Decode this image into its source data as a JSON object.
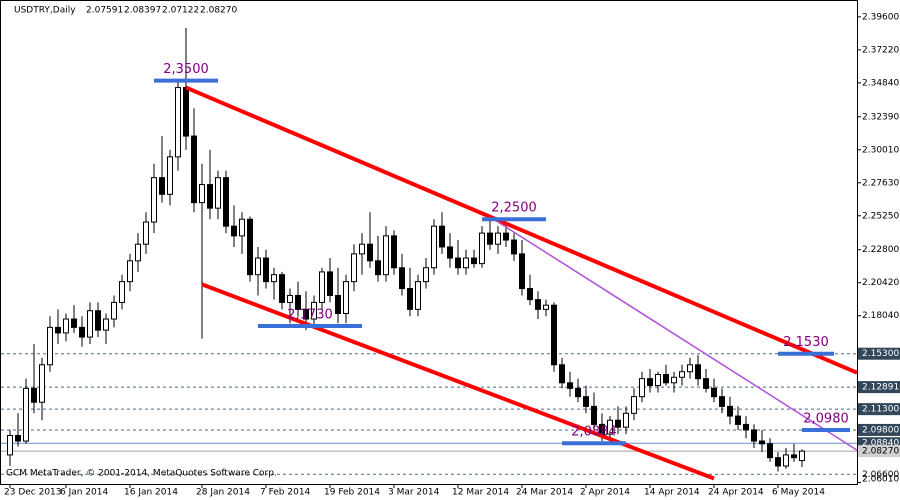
{
  "chart_data": {
    "type": "candlestick",
    "symbol": "USDTRY,Daily",
    "header_prices": [
      "2.07591",
      "2.08397",
      "2.07122",
      "2.08270"
    ],
    "footer": "GCM MetaTrader, © 2001-2014, MetaQuotes Software Corp.",
    "categories": [
      "23 Dec 2013",
      null,
      null,
      null,
      null,
      null,
      null,
      "6 Jan 2014",
      null,
      null,
      null,
      null,
      null,
      null,
      null,
      "16 Jan 2014",
      null,
      null,
      null,
      null,
      null,
      null,
      null,
      null,
      "28 Jan 2014",
      null,
      null,
      null,
      null,
      null,
      null,
      null,
      "7 Feb 2014",
      null,
      null,
      null,
      null,
      null,
      null,
      null,
      "19 Feb 2014",
      null,
      null,
      null,
      null,
      null,
      null,
      null,
      "3 Mar 2014",
      null,
      null,
      null,
      null,
      null,
      null,
      null,
      "12 Mar 2014",
      null,
      null,
      null,
      null,
      null,
      null,
      null,
      "24 Mar 2014",
      null,
      null,
      null,
      null,
      null,
      null,
      null,
      "2 Apr 2014",
      null,
      null,
      null,
      null,
      null,
      null,
      null,
      "14 Apr 2014",
      null,
      null,
      null,
      null,
      null,
      null,
      null,
      "24 Apr 2014",
      null,
      null,
      null,
      null,
      null,
      null,
      null,
      "6 May 2014",
      null,
      null,
      null
    ],
    "open": [
      2.08,
      2.094,
      2.09,
      2.128,
      2.118,
      2.145,
      2.172,
      2.168,
      2.178,
      2.172,
      2.165,
      2.184,
      2.17,
      2.178,
      2.19,
      2.205,
      2.22,
      2.232,
      2.248,
      2.28,
      2.268,
      2.295,
      2.345,
      2.31,
      2.262,
      2.275,
      2.258,
      2.28,
      2.245,
      2.238,
      2.25,
      2.21,
      2.222,
      2.205,
      2.21,
      2.19,
      2.195,
      2.185,
      2.178,
      2.19,
      2.212,
      2.195,
      2.182,
      2.205,
      2.225,
      2.232,
      2.22,
      2.21,
      2.238,
      2.215,
      2.2,
      2.185,
      2.205,
      2.215,
      2.245,
      2.23,
      2.222,
      2.215,
      2.222,
      2.218,
      2.24,
      2.232,
      2.24,
      2.235,
      2.225,
      2.2,
      2.192,
      2.185,
      2.188,
      2.145,
      2.132,
      2.128,
      2.122,
      2.115,
      2.102,
      2.095,
      2.105,
      2.1,
      2.11,
      2.122,
      2.135,
      2.13,
      2.138,
      2.132,
      2.136,
      2.14,
      2.145,
      2.135,
      2.128,
      2.122,
      2.115,
      2.108,
      2.102,
      2.098,
      2.09,
      2.088,
      2.078,
      2.072,
      2.08,
      2.07591
    ],
    "high": [
      2.098,
      2.11,
      2.135,
      2.16,
      2.15,
      2.18,
      2.185,
      2.182,
      2.188,
      2.18,
      2.19,
      2.19,
      2.182,
      2.195,
      2.21,
      2.225,
      2.24,
      2.255,
      2.29,
      2.31,
      2.3,
      2.35,
      2.388,
      2.33,
      2.29,
      2.3,
      2.285,
      2.285,
      2.26,
      2.255,
      2.252,
      2.23,
      2.228,
      2.215,
      2.212,
      2.2,
      2.205,
      2.198,
      2.195,
      2.215,
      2.222,
      2.215,
      2.21,
      2.232,
      2.24,
      2.255,
      2.238,
      2.245,
      2.242,
      2.225,
      2.215,
      2.21,
      2.222,
      2.25,
      2.255,
      2.24,
      2.235,
      2.228,
      2.228,
      2.245,
      2.25,
      2.245,
      2.248,
      2.24,
      2.235,
      2.21,
      2.198,
      2.192,
      2.19,
      2.15,
      2.14,
      2.135,
      2.13,
      2.125,
      2.11,
      2.108,
      2.115,
      2.115,
      2.128,
      2.14,
      2.142,
      2.14,
      2.145,
      2.14,
      2.145,
      2.15,
      2.152,
      2.142,
      2.135,
      2.128,
      2.122,
      2.115,
      2.108,
      2.102,
      2.098,
      2.092,
      2.082,
      2.085,
      2.088,
      2.08397
    ],
    "low": [
      2.072,
      2.086,
      2.088,
      2.11,
      2.105,
      2.14,
      2.16,
      2.162,
      2.168,
      2.158,
      2.16,
      2.165,
      2.16,
      2.172,
      2.185,
      2.198,
      2.212,
      2.225,
      2.24,
      2.262,
      2.26,
      2.285,
      2.3,
      2.255,
      2.164,
      2.25,
      2.25,
      2.24,
      2.23,
      2.225,
      2.205,
      2.195,
      2.2,
      2.192,
      2.185,
      2.175,
      2.18,
      2.17,
      2.172,
      2.185,
      2.19,
      2.175,
      2.175,
      2.198,
      2.21,
      2.215,
      2.205,
      2.205,
      2.21,
      2.195,
      2.18,
      2.18,
      2.2,
      2.21,
      2.225,
      2.215,
      2.21,
      2.21,
      2.215,
      2.215,
      2.228,
      2.225,
      2.23,
      2.22,
      2.195,
      2.188,
      2.178,
      2.18,
      2.14,
      2.128,
      2.122,
      2.118,
      2.11,
      2.098,
      2.09,
      2.088,
      2.095,
      2.095,
      2.105,
      2.118,
      2.125,
      2.125,
      2.13,
      2.125,
      2.13,
      2.135,
      2.13,
      2.125,
      2.118,
      2.11,
      2.102,
      2.098,
      2.092,
      2.085,
      2.082,
      2.075,
      2.068,
      2.07,
      2.075,
      2.07122
    ],
    "close": [
      2.094,
      2.09,
      2.128,
      2.118,
      2.145,
      2.172,
      2.168,
      2.178,
      2.172,
      2.165,
      2.184,
      2.17,
      2.178,
      2.19,
      2.205,
      2.22,
      2.232,
      2.248,
      2.28,
      2.268,
      2.295,
      2.345,
      2.31,
      2.262,
      2.275,
      2.258,
      2.28,
      2.245,
      2.238,
      2.25,
      2.21,
      2.222,
      2.205,
      2.21,
      2.19,
      2.195,
      2.185,
      2.178,
      2.19,
      2.212,
      2.195,
      2.182,
      2.205,
      2.225,
      2.232,
      2.22,
      2.21,
      2.238,
      2.215,
      2.2,
      2.185,
      2.205,
      2.215,
      2.245,
      2.23,
      2.222,
      2.215,
      2.222,
      2.218,
      2.24,
      2.232,
      2.24,
      2.235,
      2.225,
      2.2,
      2.192,
      2.185,
      2.188,
      2.145,
      2.132,
      2.128,
      2.122,
      2.115,
      2.102,
      2.095,
      2.105,
      2.1,
      2.11,
      2.122,
      2.135,
      2.13,
      2.138,
      2.132,
      2.136,
      2.14,
      2.145,
      2.135,
      2.128,
      2.122,
      2.115,
      2.108,
      2.102,
      2.098,
      2.09,
      2.088,
      2.078,
      2.072,
      2.08,
      2.078,
      2.0827
    ],
    "ylim": [
      2.059,
      2.406
    ],
    "yticks": [
      {
        "value": 2.396,
        "label": "2.39600"
      },
      {
        "value": 2.3722,
        "label": "2.37220"
      },
      {
        "value": 2.3484,
        "label": "2.34840"
      },
      {
        "value": 2.3239,
        "label": "2.32390"
      },
      {
        "value": 2.3001,
        "label": "2.30010"
      },
      {
        "value": 2.2763,
        "label": "2.27630"
      },
      {
        "value": 2.2525,
        "label": "2.25250"
      },
      {
        "value": 2.228,
        "label": "2.22800"
      },
      {
        "value": 2.2042,
        "label": "2.20420"
      },
      {
        "value": 2.1804,
        "label": "2.18040"
      },
      {
        "value": 2.0601,
        "label": "2.06010"
      }
    ],
    "levels": [
      {
        "value": 2.153,
        "label": "2.15300",
        "dashed": true,
        "highlight": true
      },
      {
        "value": 2.12891,
        "label": "2.12891",
        "dashed": true,
        "highlight": true
      },
      {
        "value": 2.113,
        "label": "2.11300",
        "dashed": true,
        "highlight": true
      },
      {
        "value": 2.098,
        "label": "2.09800",
        "dashed": true,
        "highlight": true
      },
      {
        "value": 2.0884,
        "label": "2.08840",
        "dashed": false,
        "highlight": true
      },
      {
        "value": 2.0827,
        "label": "2.08270",
        "dashed": false,
        "highlight": false,
        "current": true
      },
      {
        "value": 2.066,
        "label": "2.06600",
        "dashed": true,
        "highlight": false
      }
    ],
    "trendlines": [
      {
        "color": "#ff0000",
        "points": [
          [
            22,
            2.345
          ],
          [
            106,
            2.139
          ]
        ]
      },
      {
        "color": "#ff0000",
        "points": [
          [
            24,
            2.203
          ],
          [
            88,
            2.063
          ]
        ]
      },
      {
        "color": "#b050d8",
        "points": [
          [
            61,
            2.248
          ],
          [
            106,
            2.083
          ]
        ]
      }
    ],
    "annotations": [
      {
        "text": "2,3500",
        "value": 2.35,
        "from": 18,
        "to": 26
      },
      {
        "text": "2,2500",
        "value": 2.25,
        "from": 59,
        "to": 67
      },
      {
        "text": "2,1730",
        "value": 2.173,
        "from": 31,
        "to": 44
      },
      {
        "text": "2,0884",
        "value": 2.0884,
        "from": 69,
        "to": 77
      },
      {
        "text": "2,1530",
        "value": 2.153,
        "from": 96,
        "to": 103
      },
      {
        "text": "2,0980",
        "value": 2.098,
        "from": 99,
        "to": 105
      }
    ]
  }
}
